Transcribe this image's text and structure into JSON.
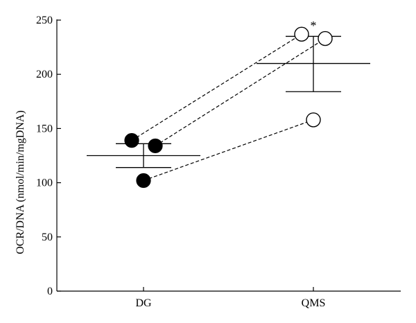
{
  "chart_data": {
    "type": "scatter",
    "ylabel": "OCR/DNA (nmol/min/mgDNA)",
    "xlabel": "",
    "categories": [
      "DG",
      "QMS"
    ],
    "ylim": [
      0,
      250
    ],
    "yticks": [
      0,
      50,
      100,
      150,
      200,
      250
    ],
    "grid": false,
    "series": [
      {
        "style": "filled",
        "points": [
          {
            "category": "DG",
            "jitter": -1,
            "y": 139
          },
          {
            "category": "DG",
            "jitter": 1,
            "y": 134
          },
          {
            "category": "DG",
            "jitter": 0,
            "y": 102
          }
        ]
      },
      {
        "style": "open",
        "points": [
          {
            "category": "QMS",
            "jitter": -1,
            "y": 237
          },
          {
            "category": "QMS",
            "jitter": 1,
            "y": 233
          },
          {
            "category": "QMS",
            "jitter": 0,
            "y": 158
          }
        ]
      }
    ],
    "pairs": [
      [
        0,
        0
      ],
      [
        1,
        1
      ],
      [
        2,
        2
      ]
    ],
    "summary": [
      {
        "category": "DG",
        "mean": 125,
        "upper": 136,
        "lower": 114
      },
      {
        "category": "QMS",
        "mean": 210,
        "upper": 235,
        "lower": 184
      }
    ],
    "annotations": [
      {
        "text": "*",
        "category": "QMS",
        "y": 245
      }
    ]
  }
}
